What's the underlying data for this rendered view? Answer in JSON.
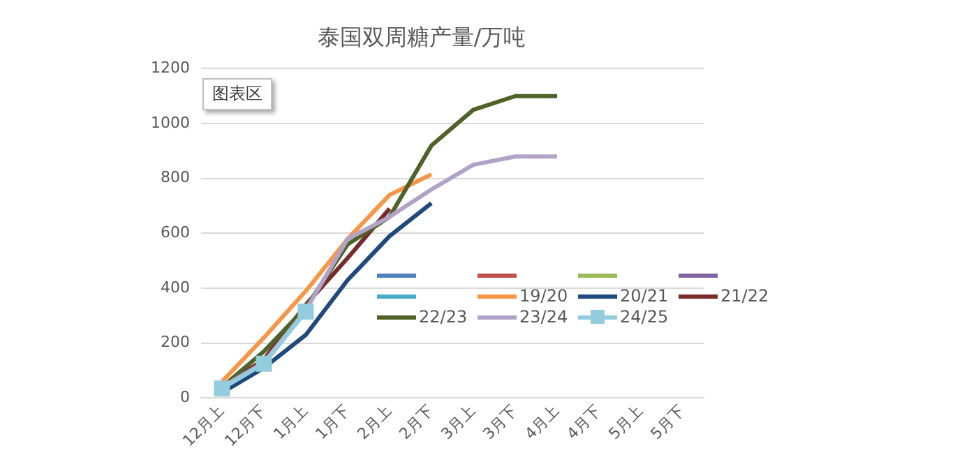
{
  "chart_data": {
    "type": "line",
    "title": "泰国双周糖产量/万吨",
    "categories": [
      "12月上",
      "12月下",
      "1月上",
      "1月下",
      "2月上",
      "2月下",
      "3月上",
      "3月下",
      "4月上",
      "4月下",
      "5月上",
      "5月下"
    ],
    "series": [
      {
        "color": "#4f81bd",
        "values": [
          null,
          null,
          null,
          null,
          null,
          null,
          null,
          null,
          null,
          null,
          null,
          null
        ]
      },
      {
        "color": "#c0504d",
        "values": [
          null,
          null,
          null,
          null,
          null,
          null,
          null,
          null,
          null,
          null,
          null,
          null
        ]
      },
      {
        "color": "#9bbb59",
        "values": [
          null,
          null,
          null,
          null,
          null,
          null,
          null,
          null,
          null,
          null,
          null,
          null
        ]
      },
      {
        "color": "#8064a2",
        "values": [
          null,
          null,
          null,
          null,
          null,
          null,
          null,
          null,
          null,
          null,
          null,
          null
        ]
      },
      {
        "color": "#4bacc6",
        "values": [
          null,
          null,
          null,
          null,
          null,
          null,
          null,
          null,
          null,
          null,
          null,
          null
        ]
      },
      {
        "name": "19/20",
        "color": "#f79646",
        "values": [
          60,
          220,
          390,
          580,
          740,
          815,
          null,
          null,
          null,
          null,
          null,
          null
        ]
      },
      {
        "name": "20/21",
        "color": "#1f497d",
        "values": [
          20,
          110,
          230,
          430,
          590,
          710,
          null,
          null,
          null,
          null,
          null,
          null
        ]
      },
      {
        "name": "21/22",
        "color": "#772c2a",
        "values": [
          40,
          140,
          340,
          510,
          690,
          null,
          null,
          null,
          null,
          null,
          null,
          null
        ]
      },
      {
        "name": "22/23",
        "color": "#4f6228",
        "values": [
          40,
          170,
          330,
          560,
          660,
          920,
          1050,
          1100,
          1100,
          null,
          null,
          null
        ]
      },
      {
        "name": "23/24",
        "color": "#b3a2c7",
        "values": [
          40,
          130,
          320,
          580,
          660,
          760,
          850,
          880,
          880,
          null,
          null,
          null
        ]
      },
      {
        "name": "24/25",
        "color": "#93cddd",
        "marker": "square",
        "values": [
          35,
          125,
          315,
          null,
          null,
          null,
          null,
          null,
          null,
          null,
          null,
          null
        ]
      }
    ],
    "ylim": [
      0,
      1200
    ],
    "yticks": [
      0,
      200,
      400,
      600,
      800,
      1000,
      1200
    ],
    "grid": "y",
    "legend": "bottom right",
    "marker": "none",
    "annotations": [
      "图表区"
    ]
  }
}
